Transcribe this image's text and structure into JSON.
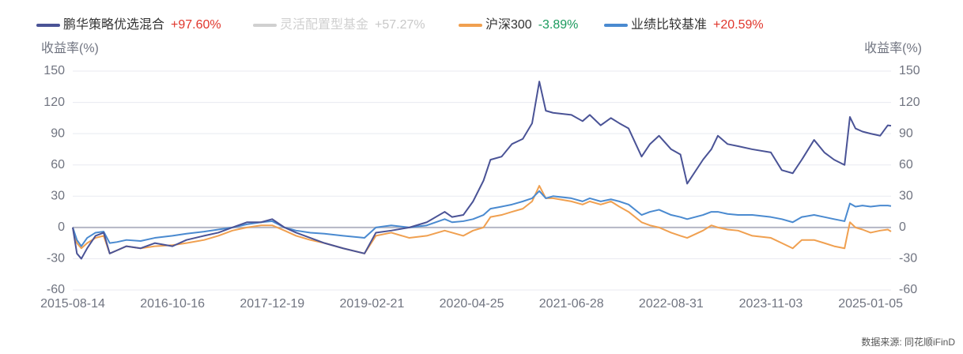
{
  "chart_data": {
    "type": "line",
    "y_axis_label": "收益率(%)",
    "y2_axis_label": "收益率(%)",
    "source": "数据来源: 同花顺iFinD",
    "x": [
      "2015-08-14",
      "2015-09-01",
      "2015-09-20",
      "2015-10-15",
      "2015-11-20",
      "2015-12-25",
      "2016-01-20",
      "2016-02-20",
      "2016-04-01",
      "2016-06-01",
      "2016-08-01",
      "2016-10-16",
      "2016-12-15",
      "2017-03-01",
      "2017-05-01",
      "2017-07-01",
      "2017-09-01",
      "2017-11-01",
      "2017-12-19",
      "2018-02-10",
      "2018-04-01",
      "2018-06-01",
      "2018-08-01",
      "2018-10-20",
      "2019-01-20",
      "2019-03-10",
      "2019-05-15",
      "2019-08-01",
      "2019-10-15",
      "2019-12-31",
      "2020-02-01",
      "2020-03-20",
      "2020-05-01",
      "2020-06-15",
      "2020-07-15",
      "2020-09-01",
      "2020-10-15",
      "2020-12-01",
      "2021-01-10",
      "2021-02-10",
      "2021-03-10",
      "2021-04-10",
      "2021-06-28",
      "2021-08-15",
      "2021-09-15",
      "2021-11-01",
      "2021-12-15",
      "2022-01-20",
      "2022-03-01",
      "2022-04-26",
      "2022-06-01",
      "2022-07-10",
      "2022-08-31",
      "2022-10-10",
      "2022-11-08",
      "2023-01-15",
      "2023-02-20",
      "2023-03-20",
      "2023-05-01",
      "2023-06-15",
      "2023-08-15",
      "2023-11-03",
      "2023-12-20",
      "2024-02-05",
      "2024-03-15",
      "2024-05-07",
      "2024-06-20",
      "2024-08-01",
      "2024-09-15",
      "2024-10-08",
      "2024-11-01",
      "2024-12-01",
      "2025-01-05",
      "2025-02-15",
      "2025-03-20",
      "2025-04-03"
    ],
    "xlim": [
      "2015-08-14",
      "2025-04-03"
    ],
    "xticks": [
      "2015-08-14",
      "2016-10-16",
      "2017-12-19",
      "2019-02-21",
      "2020-04-25",
      "2021-06-28",
      "2022-08-31",
      "2023-11-03",
      "2025-01-05"
    ],
    "ylim": [
      -60,
      150
    ],
    "yticks": [
      -60,
      -30,
      0,
      30,
      60,
      90,
      120,
      150
    ],
    "y2lim": [
      -60,
      150
    ],
    "y2ticks": [
      -60,
      -30,
      0,
      30,
      60,
      90,
      120,
      150
    ],
    "grid": true,
    "series": [
      {
        "name": "鹏华策略优选混合",
        "color": "#4a5396",
        "change": {
          "value": 97.6,
          "label": "+97.60%"
        },
        "label_color": "#e0362c",
        "values": [
          0,
          -25,
          -30,
          -20,
          -8,
          -5,
          -25,
          -22,
          -18,
          -20,
          -15,
          -18,
          -12,
          -8,
          -5,
          0,
          5,
          5,
          8,
          0,
          -5,
          -10,
          -15,
          -20,
          -25,
          -5,
          -3,
          0,
          5,
          15,
          10,
          12,
          25,
          45,
          65,
          68,
          80,
          85,
          100,
          140,
          112,
          110,
          108,
          102,
          108,
          98,
          105,
          100,
          95,
          68,
          80,
          88,
          75,
          70,
          42,
          65,
          75,
          88,
          80,
          78,
          75,
          72,
          55,
          52,
          65,
          84,
          72,
          65,
          60,
          106,
          95,
          92,
          90,
          88,
          98,
          97.6
        ]
      },
      {
        "name": "灵活配置型基金",
        "color": "#d0d0d0",
        "change": {
          "value": 57.27,
          "label": "+57.27%"
        },
        "label_color": "#c8c8c8",
        "hidden": true
      },
      {
        "name": "沪深300",
        "color": "#f0a050",
        "change": {
          "value": -3.89,
          "label": "-3.89%"
        },
        "label_color": "#1a9a5d",
        "values": [
          0,
          -15,
          -20,
          -15,
          -10,
          -8,
          -25,
          -22,
          -18,
          -20,
          -18,
          -17,
          -15,
          -12,
          -8,
          -3,
          0,
          2,
          2,
          -3,
          -8,
          -12,
          -15,
          -20,
          -25,
          -8,
          -5,
          -10,
          -8,
          -3,
          -5,
          -8,
          -3,
          0,
          10,
          12,
          15,
          18,
          25,
          40,
          28,
          28,
          25,
          22,
          25,
          22,
          25,
          20,
          15,
          5,
          2,
          0,
          -5,
          -8,
          -10,
          -3,
          2,
          0,
          -2,
          -3,
          -8,
          -10,
          -15,
          -20,
          -12,
          -12,
          -15,
          -18,
          -20,
          5,
          0,
          -2,
          -5,
          -3,
          -2,
          -3.89
        ]
      },
      {
        "name": "业绩比较基准",
        "color": "#4a8ad0",
        "change": {
          "value": 20.59,
          "label": "+20.59%"
        },
        "label_color": "#e0362c",
        "values": [
          0,
          -12,
          -18,
          -10,
          -5,
          -4,
          -15,
          -14,
          -12,
          -13,
          -10,
          -8,
          -6,
          -4,
          -2,
          0,
          3,
          5,
          6,
          0,
          -3,
          -5,
          -6,
          -8,
          -10,
          0,
          2,
          0,
          2,
          8,
          5,
          6,
          8,
          12,
          18,
          20,
          22,
          25,
          28,
          35,
          28,
          30,
          28,
          25,
          28,
          25,
          27,
          25,
          22,
          12,
          15,
          17,
          12,
          10,
          8,
          12,
          15,
          15,
          13,
          12,
          12,
          10,
          8,
          5,
          10,
          12,
          10,
          8,
          6,
          23,
          20,
          21,
          20,
          21,
          21,
          20.59
        ]
      }
    ]
  }
}
